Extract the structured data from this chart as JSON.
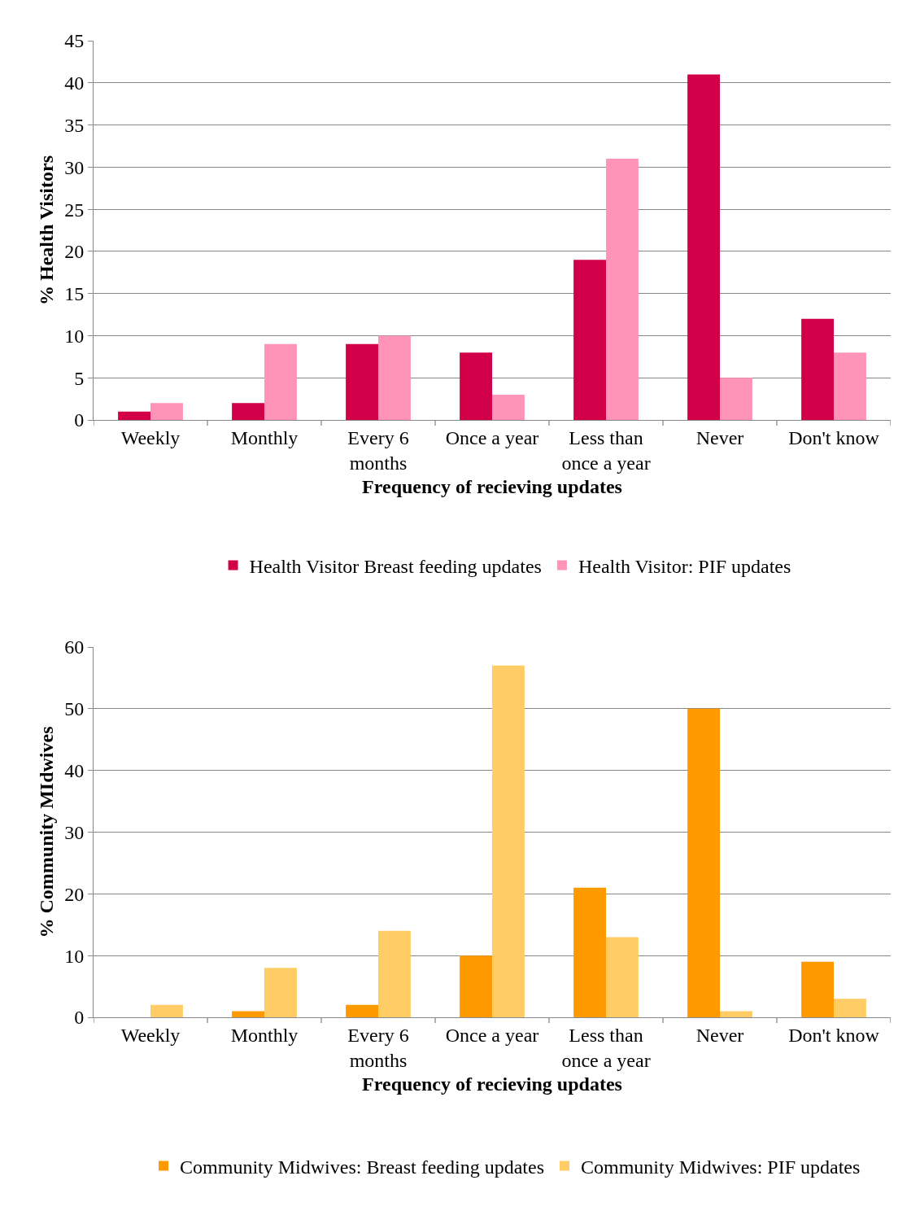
{
  "chart_data": [
    {
      "type": "bar",
      "xlabel": "Frequency of recieving updates",
      "ylabel": "% Health Visitors",
      "categories": [
        "Weekly",
        "Monthly",
        "Every 6 months",
        "Once a year",
        "Less than once a year",
        "Never",
        "Don't know"
      ],
      "series": [
        {
          "name": "Health Visitor Breast feeding updates",
          "color": "#d20049",
          "values": [
            1,
            2,
            9,
            8,
            19,
            41,
            12
          ]
        },
        {
          "name": "Health Visitor: PIF updates",
          "color": "#ff93b8",
          "values": [
            2,
            9,
            10,
            3,
            31,
            5,
            8
          ]
        }
      ],
      "ylim": [
        0,
        45
      ],
      "yticks": [
        0,
        5,
        10,
        15,
        20,
        25,
        30,
        35,
        40,
        45
      ],
      "grid": "y",
      "legend": "bottom"
    },
    {
      "type": "bar",
      "xlabel": "Frequency of recieving updates",
      "ylabel": "% Community MIdwives",
      "categories": [
        "Weekly",
        "Monthly",
        "Every 6 months",
        "Once a year",
        "Less than once a year",
        "Never",
        "Don't know"
      ],
      "series": [
        {
          "name": "Community Midwives: Breast feeding updates",
          "color": "#ff9900",
          "values": [
            0,
            1,
            2,
            10,
            21,
            50,
            9
          ]
        },
        {
          "name": "Community Midwives: PIF updates",
          "color": "#ffcc66",
          "values": [
            2,
            8,
            14,
            57,
            13,
            1,
            3
          ]
        }
      ],
      "ylim": [
        0,
        60
      ],
      "yticks": [
        0,
        10,
        20,
        30,
        40,
        50,
        60
      ],
      "grid": "y",
      "legend": "bottom"
    }
  ]
}
